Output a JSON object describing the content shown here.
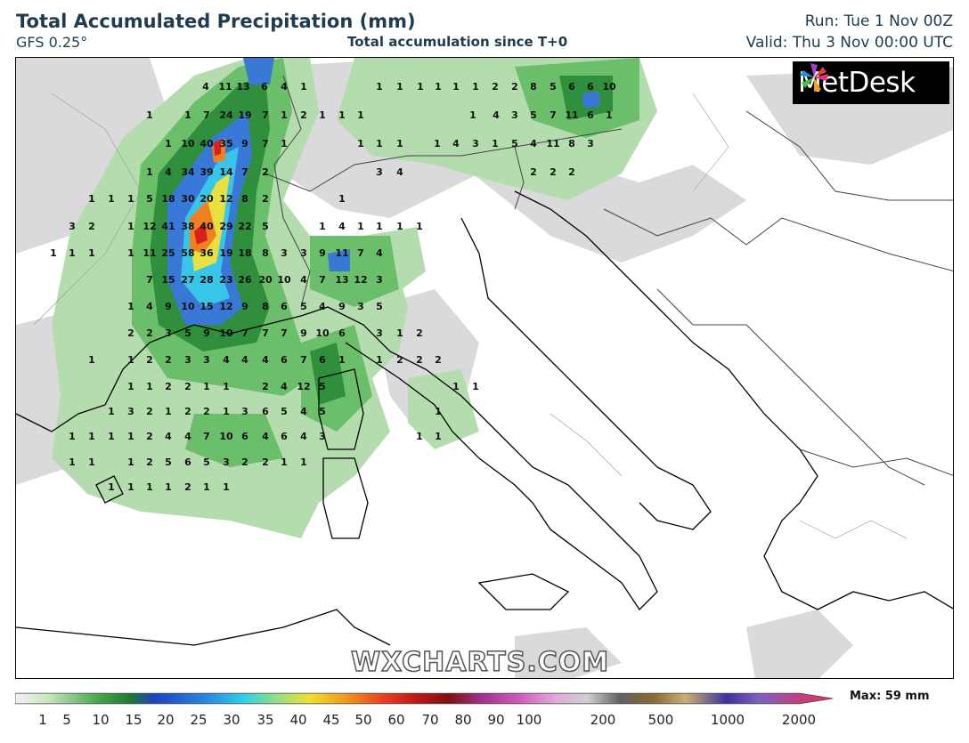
{
  "header": {
    "title": "Total Accumulated Precipitation (mm)",
    "model": "GFS 0.25°",
    "subtitle": "Total accumulation since T+0",
    "run": "Run: Tue 1 Nov 00Z",
    "valid": "Valid: Thu 3 Nov 00:00 UTC"
  },
  "brand": {
    "logo_text": "MetDesk",
    "watermark": "WXCHARTS.COM"
  },
  "legend": {
    "max_label": "Max: 59 mm",
    "ticks": [
      "1",
      "5",
      "10",
      "15",
      "20",
      "25",
      "30",
      "35",
      "40",
      "45",
      "50",
      "60",
      "70",
      "80",
      "90",
      "100",
      "200",
      "500",
      "1000",
      "2000"
    ]
  },
  "colors": {
    "light_green": "#a8d5a2",
    "mid_green": "#5fb35f",
    "dark_green": "#2e8b3a",
    "grey": "#c8c8c8",
    "blue": "#3060d0",
    "cyan": "#30c0e0",
    "yellow": "#f0e030",
    "orange": "#f08020",
    "red": "#d82020"
  },
  "values": [
    [
      "4",
      230,
      96
    ],
    [
      "11",
      252,
      96
    ],
    [
      "13",
      272,
      96
    ],
    [
      "6",
      296,
      96
    ],
    [
      "4",
      318,
      96
    ],
    [
      "1",
      340,
      96
    ],
    [
      "1",
      425,
      96
    ],
    [
      "1",
      448,
      96
    ],
    [
      "1",
      471,
      96
    ],
    [
      "1",
      491,
      96
    ],
    [
      "1",
      511,
      96
    ],
    [
      "1",
      533,
      96
    ],
    [
      "2",
      555,
      96
    ],
    [
      "2",
      577,
      96
    ],
    [
      "8",
      598,
      96
    ],
    [
      "5",
      620,
      96
    ],
    [
      "6",
      641,
      96
    ],
    [
      "6",
      662,
      96
    ],
    [
      "10",
      683,
      96
    ],
    [
      "1",
      167,
      128
    ],
    [
      "1",
      210,
      128
    ],
    [
      "7",
      231,
      128
    ],
    [
      "24",
      253,
      128
    ],
    [
      "19",
      274,
      128
    ],
    [
      "7",
      297,
      128
    ],
    [
      "1",
      318,
      128
    ],
    [
      "2",
      340,
      128
    ],
    [
      "1",
      361,
      128
    ],
    [
      "1",
      383,
      128
    ],
    [
      "1",
      404,
      128
    ],
    [
      "1",
      530,
      128
    ],
    [
      "4",
      556,
      128
    ],
    [
      "3",
      577,
      128
    ],
    [
      "5",
      598,
      128
    ],
    [
      "7",
      620,
      128
    ],
    [
      "11",
      641,
      128
    ],
    [
      "6",
      662,
      128
    ],
    [
      "1",
      683,
      128
    ],
    [
      "1",
      188,
      160
    ],
    [
      "10",
      210,
      160
    ],
    [
      "40",
      231,
      160
    ],
    [
      "35",
      253,
      160
    ],
    [
      "9",
      274,
      160
    ],
    [
      "7",
      297,
      160
    ],
    [
      "1",
      318,
      160
    ],
    [
      "1",
      404,
      160
    ],
    [
      "1",
      425,
      160
    ],
    [
      "1",
      448,
      160
    ],
    [
      "1",
      490,
      160
    ],
    [
      "4",
      511,
      160
    ],
    [
      "3",
      533,
      160
    ],
    [
      "1",
      555,
      160
    ],
    [
      "5",
      577,
      160
    ],
    [
      "4",
      598,
      160
    ],
    [
      "11",
      620,
      160
    ],
    [
      "8",
      641,
      160
    ],
    [
      "3",
      662,
      160
    ],
    [
      "1",
      167,
      192
    ],
    [
      "4",
      188,
      192
    ],
    [
      "34",
      210,
      192
    ],
    [
      "39",
      231,
      192
    ],
    [
      "14",
      253,
      192
    ],
    [
      "7",
      274,
      192
    ],
    [
      "2",
      297,
      192
    ],
    [
      "3",
      425,
      192
    ],
    [
      "4",
      448,
      192
    ],
    [
      "2",
      598,
      192
    ],
    [
      "2",
      620,
      192
    ],
    [
      "2",
      641,
      192
    ],
    [
      "1",
      102,
      222
    ],
    [
      "1",
      124,
      222
    ],
    [
      "1",
      146,
      222
    ],
    [
      "5",
      167,
      222
    ],
    [
      "18",
      188,
      222
    ],
    [
      "30",
      210,
      222
    ],
    [
      "20",
      231,
      222
    ],
    [
      "12",
      253,
      222
    ],
    [
      "8",
      274,
      222
    ],
    [
      "2",
      297,
      222
    ],
    [
      "1",
      383,
      222
    ],
    [
      "3",
      80,
      253
    ],
    [
      "2",
      102,
      253
    ],
    [
      "1",
      146,
      253
    ],
    [
      "12",
      167,
      253
    ],
    [
      "41",
      188,
      253
    ],
    [
      "38",
      210,
      253
    ],
    [
      "40",
      231,
      253
    ],
    [
      "29",
      253,
      253
    ],
    [
      "22",
      274,
      253
    ],
    [
      "5",
      297,
      253
    ],
    [
      "1",
      361,
      253
    ],
    [
      "4",
      383,
      253
    ],
    [
      "1",
      404,
      253
    ],
    [
      "1",
      425,
      253
    ],
    [
      "1",
      448,
      253
    ],
    [
      "1",
      470,
      253
    ],
    [
      "1",
      59,
      283
    ],
    [
      "1",
      80,
      283
    ],
    [
      "1",
      102,
      283
    ],
    [
      "1",
      146,
      283
    ],
    [
      "11",
      167,
      283
    ],
    [
      "25",
      188,
      283
    ],
    [
      "58",
      210,
      283
    ],
    [
      "36",
      231,
      283
    ],
    [
      "19",
      253,
      283
    ],
    [
      "18",
      274,
      283
    ],
    [
      "8",
      297,
      283
    ],
    [
      "3",
      318,
      283
    ],
    [
      "3",
      340,
      283
    ],
    [
      "9",
      361,
      283
    ],
    [
      "11",
      383,
      283
    ],
    [
      "7",
      404,
      283
    ],
    [
      "4",
      425,
      283
    ],
    [
      "7",
      167,
      313
    ],
    [
      "15",
      188,
      313
    ],
    [
      "27",
      210,
      313
    ],
    [
      "28",
      231,
      313
    ],
    [
      "23",
      253,
      313
    ],
    [
      "26",
      274,
      313
    ],
    [
      "20",
      297,
      313
    ],
    [
      "10",
      318,
      313
    ],
    [
      "4",
      340,
      313
    ],
    [
      "7",
      361,
      313
    ],
    [
      "13",
      383,
      313
    ],
    [
      "12",
      404,
      313
    ],
    [
      "3",
      425,
      313
    ],
    [
      "1",
      146,
      343
    ],
    [
      "4",
      167,
      343
    ],
    [
      "9",
      188,
      343
    ],
    [
      "10",
      210,
      343
    ],
    [
      "15",
      231,
      343
    ],
    [
      "12",
      253,
      343
    ],
    [
      "9",
      274,
      343
    ],
    [
      "8",
      297,
      343
    ],
    [
      "6",
      318,
      343
    ],
    [
      "5",
      340,
      343
    ],
    [
      "4",
      361,
      343
    ],
    [
      "9",
      383,
      343
    ],
    [
      "3",
      404,
      343
    ],
    [
      "5",
      425,
      343
    ],
    [
      "2",
      146,
      373
    ],
    [
      "2",
      167,
      373
    ],
    [
      "3",
      188,
      373
    ],
    [
      "5",
      210,
      373
    ],
    [
      "9",
      231,
      373
    ],
    [
      "10",
      253,
      373
    ],
    [
      "7",
      274,
      373
    ],
    [
      "7",
      297,
      373
    ],
    [
      "7",
      318,
      373
    ],
    [
      "9",
      340,
      373
    ],
    [
      "10",
      361,
      373
    ],
    [
      "6",
      383,
      373
    ],
    [
      "3",
      425,
      373
    ],
    [
      "1",
      448,
      373
    ],
    [
      "2",
      470,
      373
    ],
    [
      "1",
      102,
      403
    ],
    [
      "1",
      146,
      403
    ],
    [
      "2",
      167,
      403
    ],
    [
      "2",
      188,
      403
    ],
    [
      "3",
      210,
      403
    ],
    [
      "3",
      231,
      403
    ],
    [
      "4",
      253,
      403
    ],
    [
      "4",
      274,
      403
    ],
    [
      "4",
      297,
      403
    ],
    [
      "6",
      318,
      403
    ],
    [
      "7",
      340,
      403
    ],
    [
      "6",
      361,
      403
    ],
    [
      "1",
      383,
      403
    ],
    [
      "1",
      425,
      403
    ],
    [
      "2",
      448,
      403
    ],
    [
      "2",
      470,
      403
    ],
    [
      "2",
      491,
      403
    ],
    [
      "1",
      146,
      433
    ],
    [
      "1",
      167,
      433
    ],
    [
      "2",
      188,
      433
    ],
    [
      "2",
      210,
      433
    ],
    [
      "1",
      231,
      433
    ],
    [
      "1",
      253,
      433
    ],
    [
      "2",
      297,
      433
    ],
    [
      "4",
      318,
      433
    ],
    [
      "12",
      340,
      433
    ],
    [
      "5",
      361,
      433
    ],
    [
      "1",
      511,
      433
    ],
    [
      "1",
      533,
      433
    ],
    [
      "1",
      124,
      461
    ],
    [
      "3",
      146,
      461
    ],
    [
      "2",
      167,
      461
    ],
    [
      "1",
      188,
      461
    ],
    [
      "2",
      210,
      461
    ],
    [
      "2",
      231,
      461
    ],
    [
      "1",
      253,
      461
    ],
    [
      "3",
      274,
      461
    ],
    [
      "6",
      297,
      461
    ],
    [
      "5",
      318,
      461
    ],
    [
      "4",
      340,
      461
    ],
    [
      "5",
      361,
      461
    ],
    [
      "1",
      491,
      461
    ],
    [
      "1",
      80,
      489
    ],
    [
      "1",
      102,
      489
    ],
    [
      "1",
      124,
      489
    ],
    [
      "1",
      146,
      489
    ],
    [
      "2",
      167,
      489
    ],
    [
      "4",
      188,
      489
    ],
    [
      "4",
      210,
      489
    ],
    [
      "7",
      231,
      489
    ],
    [
      "10",
      253,
      489
    ],
    [
      "6",
      274,
      489
    ],
    [
      "4",
      297,
      489
    ],
    [
      "6",
      318,
      489
    ],
    [
      "4",
      340,
      489
    ],
    [
      "3",
      361,
      489
    ],
    [
      "1",
      470,
      489
    ],
    [
      "1",
      491,
      489
    ],
    [
      "1",
      80,
      518
    ],
    [
      "1",
      102,
      518
    ],
    [
      "1",
      146,
      518
    ],
    [
      "2",
      167,
      518
    ],
    [
      "5",
      188,
      518
    ],
    [
      "6",
      210,
      518
    ],
    [
      "5",
      231,
      518
    ],
    [
      "3",
      253,
      518
    ],
    [
      "2",
      274,
      518
    ],
    [
      "2",
      297,
      518
    ],
    [
      "1",
      318,
      518
    ],
    [
      "1",
      340,
      518
    ],
    [
      "1",
      124,
      546
    ],
    [
      "1",
      146,
      546
    ],
    [
      "1",
      167,
      546
    ],
    [
      "1",
      188,
      546
    ],
    [
      "2",
      210,
      546
    ],
    [
      "1",
      231,
      546
    ],
    [
      "1",
      253,
      546
    ]
  ]
}
